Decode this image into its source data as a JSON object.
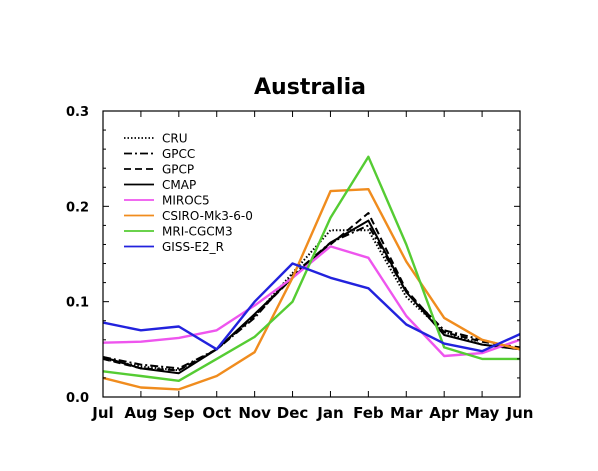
{
  "chart_data": {
    "type": "line",
    "title": "Australia",
    "xlabel": "",
    "ylabel": "",
    "categories": [
      "Jul",
      "Aug",
      "Sep",
      "Oct",
      "Nov",
      "Dec",
      "Jan",
      "Feb",
      "Mar",
      "Apr",
      "May",
      "Jun"
    ],
    "ylim": [
      0,
      0.3
    ],
    "yticks": [
      "0.0",
      "0.1",
      "0.2",
      "0.3"
    ],
    "legend_position": "top-left",
    "series": [
      {
        "name": "CRU",
        "color": "#000000",
        "dash": "dotted",
        "values": [
          0.04,
          0.032,
          0.028,
          0.05,
          0.085,
          0.13,
          0.175,
          0.175,
          0.105,
          0.068,
          0.055,
          0.05
        ]
      },
      {
        "name": "GPCC",
        "color": "#000000",
        "dash": "dashdot",
        "values": [
          0.042,
          0.034,
          0.03,
          0.05,
          0.083,
          0.128,
          0.162,
          0.18,
          0.11,
          0.07,
          0.06,
          0.05
        ]
      },
      {
        "name": "GPCP",
        "color": "#000000",
        "dash": "dashed",
        "values": [
          0.04,
          0.03,
          0.028,
          0.05,
          0.085,
          0.125,
          0.16,
          0.193,
          0.112,
          0.068,
          0.058,
          0.052
        ]
      },
      {
        "name": "CMAP",
        "color": "#000000",
        "dash": "solid",
        "values": [
          0.042,
          0.03,
          0.025,
          0.05,
          0.087,
          0.125,
          0.162,
          0.185,
          0.11,
          0.065,
          0.055,
          0.05
        ]
      },
      {
        "name": "MIROC5",
        "color": "#ee55ee",
        "dash": "solid",
        "values": [
          0.057,
          0.058,
          0.062,
          0.07,
          0.096,
          0.125,
          0.158,
          0.146,
          0.085,
          0.043,
          0.046,
          0.06
        ]
      },
      {
        "name": "CSIRO-Mk3-6-0",
        "color": "#f08c1e",
        "dash": "solid",
        "values": [
          0.02,
          0.01,
          0.008,
          0.022,
          0.047,
          0.125,
          0.216,
          0.218,
          0.142,
          0.083,
          0.06,
          0.05
        ]
      },
      {
        "name": "MRI-CGCM3",
        "color": "#55cc33",
        "dash": "solid",
        "values": [
          0.027,
          0.022,
          0.017,
          0.04,
          0.063,
          0.1,
          0.188,
          0.252,
          0.16,
          0.052,
          0.04,
          0.04
        ]
      },
      {
        "name": "GISS-E2_R",
        "color": "#2222dd",
        "dash": "solid",
        "values": [
          0.078,
          0.07,
          0.074,
          0.05,
          0.1,
          0.14,
          0.125,
          0.114,
          0.076,
          0.056,
          0.048,
          0.066
        ]
      }
    ]
  }
}
